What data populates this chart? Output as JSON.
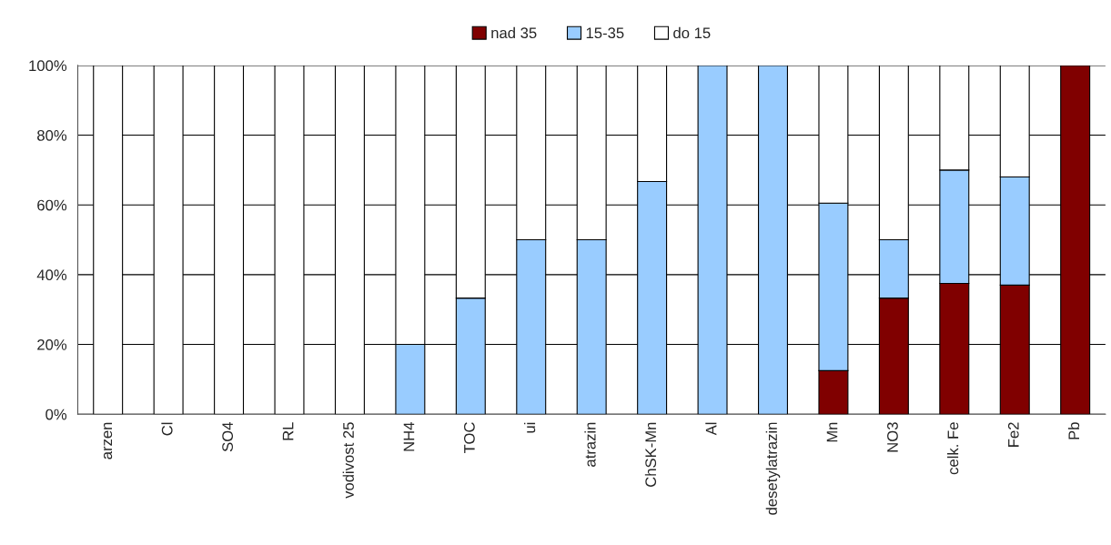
{
  "chart_data": {
    "type": "bar",
    "stacked": true,
    "categories": [
      "arzen",
      "Cl",
      "SO4",
      "RL",
      "vodivost 25",
      "NH4",
      "TOC",
      "ui",
      "atrazin",
      "ChSK-Mn",
      "Al",
      "desetylatrazin",
      "Mn",
      "NO3",
      "celk. Fe",
      "Fe2",
      "Pb"
    ],
    "series": [
      {
        "name": "nad 35",
        "color": "#800000",
        "values": [
          0,
          0,
          0,
          0,
          0,
          0,
          0,
          0,
          0,
          0,
          0,
          0,
          12.5,
          33.3,
          37.5,
          37,
          100
        ]
      },
      {
        "name": "15-35",
        "color": "#99ccff",
        "values": [
          0,
          0,
          0,
          0,
          0,
          20,
          33.3,
          50,
          50,
          66.7,
          100,
          100,
          48,
          16.7,
          32.5,
          31,
          0
        ]
      },
      {
        "name": "do 15",
        "color": "#ffffff",
        "values": [
          100,
          100,
          100,
          100,
          100,
          80,
          66.7,
          50,
          50,
          33.3,
          0,
          0,
          39.5,
          50,
          30,
          32,
          0
        ]
      }
    ],
    "ylim": [
      0,
      100
    ],
    "yticks": [
      {
        "value": 0,
        "label": "0%"
      },
      {
        "value": 20,
        "label": "20%"
      },
      {
        "value": 40,
        "label": "40%"
      },
      {
        "value": 60,
        "label": "60%"
      },
      {
        "value": 80,
        "label": "80%"
      },
      {
        "value": 100,
        "label": "100%"
      }
    ],
    "grid": "y",
    "legend": "top"
  }
}
